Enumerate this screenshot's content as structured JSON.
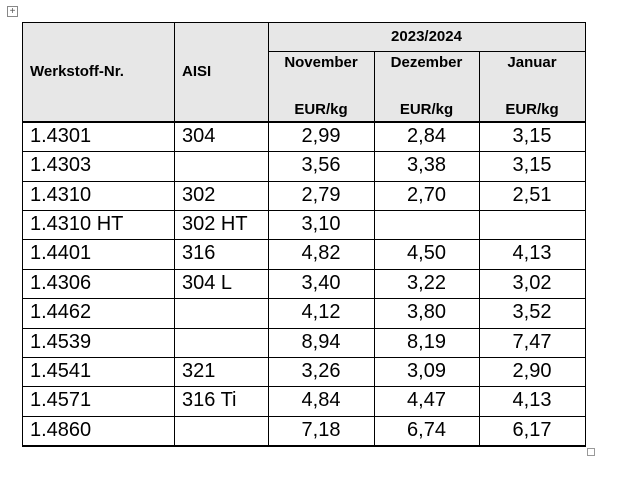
{
  "table": {
    "period": "2023/2024",
    "columns": [
      "Werkstoff-Nr.",
      "AISI",
      "November",
      "Dezember",
      "Januar"
    ],
    "units": [
      "EUR/kg",
      "EUR/kg",
      "EUR/kg"
    ],
    "rows": [
      [
        "1.4301",
        "304",
        "2,99",
        "2,84",
        "3,15"
      ],
      [
        "1.4303",
        null,
        "3,56",
        "3,38",
        "3,15"
      ],
      [
        "1.4310",
        "302",
        "2,79",
        "2,70",
        "2,51"
      ],
      [
        "1.4310 HT",
        "302 HT",
        "3,10",
        null,
        null
      ],
      [
        "1.4401",
        "316",
        "4,82",
        "4,50",
        "4,13"
      ],
      [
        "1.4306",
        "304 L",
        "3,40",
        "3,22",
        "3,02"
      ],
      [
        "1.4462",
        null,
        "4,12",
        "3,80",
        "3,52"
      ],
      [
        "1.4539",
        null,
        "8,94",
        "8,19",
        "7,47"
      ],
      [
        "1.4541",
        "321",
        "3,26",
        "3,09",
        "2,90"
      ],
      [
        "1.4571",
        "316 Ti",
        "4,84",
        "4,47",
        "4,13"
      ],
      [
        "1.4860",
        null,
        "7,18",
        "6,74",
        "6,17"
      ]
    ]
  }
}
